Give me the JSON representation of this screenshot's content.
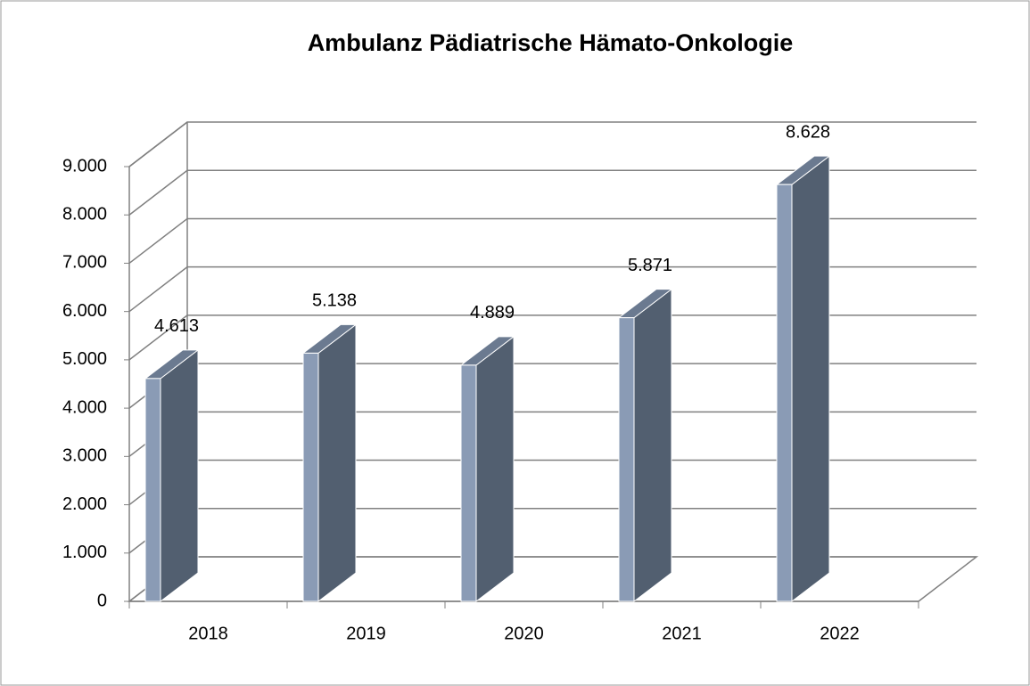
{
  "chart_data": {
    "type": "bar3d",
    "title": "Ambulanz Pädiatrische Hämato-Onkologie",
    "categories": [
      "2018",
      "2019",
      "2020",
      "2021",
      "2022"
    ],
    "values": [
      4613,
      5138,
      4889,
      5871,
      8628
    ],
    "value_labels": [
      "4.613",
      "5.138",
      "4.889",
      "5.871",
      "8.628"
    ],
    "color": "#8a9bb5",
    "ylim": [
      0,
      9000
    ],
    "yticks": [
      0,
      {
        "value": 1000,
        "label": "1.000"
      },
      {
        "value": 2000,
        "label": "2.000"
      },
      {
        "value": 3000,
        "label": "3.000"
      },
      {
        "value": 4000,
        "label": "4.000"
      },
      {
        "value": 5000,
        "label": "5.000"
      },
      {
        "value": 6000,
        "label": "6.000"
      },
      {
        "value": 7000,
        "label": "7.000"
      },
      {
        "value": 8000,
        "label": "8.000"
      },
      {
        "value": 9000,
        "label": "9.000"
      }
    ],
    "grid": true
  }
}
